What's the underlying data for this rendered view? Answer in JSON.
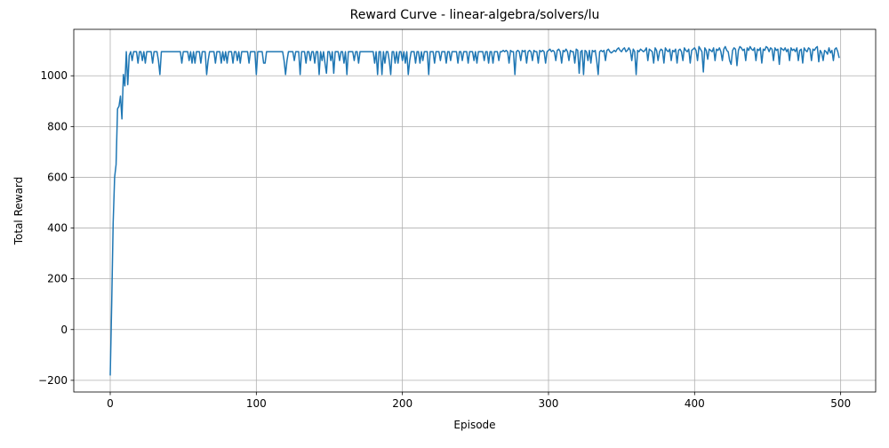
{
  "chart_data": {
    "type": "line",
    "title": "Reward Curve - linear-algebra/solvers/lu",
    "x_label": "Episode",
    "y_label": "Total Reward",
    "color": "#1f77b4",
    "grid": true,
    "xlim": [
      -24.95,
      523.95
    ],
    "ylim": [
      -246,
      1183
    ],
    "xticks": [
      0,
      100,
      200,
      300,
      400,
      500
    ],
    "yticks": [
      {
        "value": -200,
        "label": "−200"
      },
      0,
      200,
      400,
      600,
      800,
      1000
    ],
    "x": [
      0,
      1,
      2,
      3,
      4,
      5,
      6,
      7,
      8,
      9,
      10,
      11,
      12,
      13,
      14,
      15,
      16,
      17,
      18,
      19,
      20,
      21,
      22,
      23,
      24,
      25,
      26,
      27,
      28,
      29,
      30,
      31,
      32,
      33,
      34,
      35,
      36,
      37,
      38,
      39,
      40,
      41,
      42,
      43,
      44,
      45,
      46,
      47,
      48,
      49,
      50,
      51,
      52,
      53,
      54,
      55,
      56,
      57,
      58,
      59,
      60,
      61,
      62,
      63,
      64,
      65,
      66,
      67,
      68,
      69,
      70,
      71,
      72,
      73,
      74,
      75,
      76,
      77,
      78,
      79,
      80,
      81,
      82,
      83,
      84,
      85,
      86,
      87,
      88,
      89,
      90,
      91,
      92,
      93,
      94,
      95,
      96,
      97,
      98,
      99,
      100,
      101,
      102,
      103,
      104,
      105,
      106,
      107,
      108,
      109,
      110,
      111,
      112,
      113,
      114,
      115,
      116,
      117,
      118,
      119,
      120,
      121,
      122,
      123,
      124,
      125,
      126,
      127,
      128,
      129,
      130,
      131,
      132,
      133,
      134,
      135,
      136,
      137,
      138,
      139,
      140,
      141,
      142,
      143,
      144,
      145,
      146,
      147,
      148,
      149,
      150,
      151,
      152,
      153,
      154,
      155,
      156,
      157,
      158,
      159,
      160,
      161,
      162,
      163,
      164,
      165,
      166,
      167,
      168,
      169,
      170,
      171,
      172,
      173,
      174,
      175,
      176,
      177,
      178,
      179,
      180,
      181,
      182,
      183,
      184,
      185,
      186,
      187,
      188,
      189,
      190,
      191,
      192,
      193,
      194,
      195,
      196,
      197,
      198,
      199,
      200,
      201,
      202,
      203,
      204,
      205,
      206,
      207,
      208,
      209,
      210,
      211,
      212,
      213,
      214,
      215,
      216,
      217,
      218,
      219,
      220,
      221,
      222,
      223,
      224,
      225,
      226,
      227,
      228,
      229,
      230,
      231,
      232,
      233,
      234,
      235,
      236,
      237,
      238,
      239,
      240,
      241,
      242,
      243,
      244,
      245,
      246,
      247,
      248,
      249,
      250,
      251,
      252,
      253,
      254,
      255,
      256,
      257,
      258,
      259,
      260,
      261,
      262,
      263,
      264,
      265,
      266,
      267,
      268,
      269,
      270,
      271,
      272,
      273,
      274,
      275,
      276,
      277,
      278,
      279,
      280,
      281,
      282,
      283,
      284,
      285,
      286,
      287,
      288,
      289,
      290,
      291,
      292,
      293,
      294,
      295,
      296,
      297,
      298,
      299,
      300,
      301,
      302,
      303,
      304,
      305,
      306,
      307,
      308,
      309,
      310,
      311,
      312,
      313,
      314,
      315,
      316,
      317,
      318,
      319,
      320,
      321,
      322,
      323,
      324,
      325,
      326,
      327,
      328,
      329,
      330,
      331,
      332,
      333,
      334,
      335,
      336,
      337,
      338,
      339,
      340,
      341,
      342,
      343,
      344,
      345,
      346,
      347,
      348,
      349,
      350,
      351,
      352,
      353,
      354,
      355,
      356,
      357,
      358,
      359,
      360,
      361,
      362,
      363,
      364,
      365,
      366,
      367,
      368,
      369,
      370,
      371,
      372,
      373,
      374,
      375,
      376,
      377,
      378,
      379,
      380,
      381,
      382,
      383,
      384,
      385,
      386,
      387,
      388,
      389,
      390,
      391,
      392,
      393,
      394,
      395,
      396,
      397,
      398,
      399,
      400,
      401,
      402,
      403,
      404,
      405,
      406,
      407,
      408,
      409,
      410,
      411,
      412,
      413,
      414,
      415,
      416,
      417,
      418,
      419,
      420,
      421,
      422,
      423,
      424,
      425,
      426,
      427,
      428,
      429,
      430,
      431,
      432,
      433,
      434,
      435,
      436,
      437,
      438,
      439,
      440,
      441,
      442,
      443,
      444,
      445,
      446,
      447,
      448,
      449,
      450,
      451,
      452,
      453,
      454,
      455,
      456,
      457,
      458,
      459,
      460,
      461,
      462,
      463,
      464,
      465,
      466,
      467,
      468,
      469,
      470,
      471,
      472,
      473,
      474,
      475,
      476,
      477,
      478,
      479,
      480,
      481,
      482,
      483,
      484,
      485,
      486,
      487,
      488,
      489,
      490,
      491,
      492,
      493,
      494,
      495,
      496,
      497,
      498,
      499
    ],
    "values": [
      -181,
      100,
      420,
      600,
      650,
      870,
      880,
      920,
      830,
      1005,
      960,
      1095,
      965,
      1080,
      1095,
      1060,
      1095,
      1095,
      1095,
      1050,
      1095,
      1095,
      1060,
      1095,
      1050,
      1095,
      1095,
      1095,
      1095,
      1050,
      1095,
      1095,
      1095,
      1060,
      1005,
      1095,
      1095,
      1095,
      1095,
      1095,
      1095,
      1095,
      1095,
      1095,
      1095,
      1095,
      1095,
      1095,
      1095,
      1050,
      1095,
      1095,
      1095,
      1095,
      1060,
      1095,
      1050,
      1095,
      1050,
      1095,
      1095,
      1095,
      1050,
      1095,
      1095,
      1095,
      1005,
      1060,
      1095,
      1095,
      1095,
      1095,
      1050,
      1095,
      1095,
      1095,
      1050,
      1095,
      1060,
      1095,
      1050,
      1095,
      1095,
      1095,
      1050,
      1095,
      1095,
      1060,
      1095,
      1050,
      1095,
      1095,
      1095,
      1095,
      1095,
      1050,
      1095,
      1095,
      1095,
      1095,
      1005,
      1095,
      1095,
      1095,
      1095,
      1050,
      1050,
      1095,
      1095,
      1095,
      1095,
      1095,
      1095,
      1095,
      1095,
      1095,
      1095,
      1095,
      1095,
      1060,
      1005,
      1060,
      1095,
      1095,
      1095,
      1095,
      1060,
      1095,
      1095,
      1095,
      1005,
      1095,
      1095,
      1095,
      1050,
      1095,
      1095,
      1060,
      1095,
      1095,
      1050,
      1095,
      1095,
      1005,
      1095,
      1060,
      1095,
      1050,
      1010,
      1095,
      1095,
      1060,
      1095,
      1010,
      1095,
      1095,
      1095,
      1060,
      1095,
      1095,
      1050,
      1095,
      1005,
      1095,
      1095,
      1095,
      1095,
      1060,
      1095,
      1095,
      1050,
      1095,
      1095,
      1095,
      1095,
      1095,
      1095,
      1095,
      1095,
      1095,
      1095,
      1050,
      1095,
      1005,
      1095,
      1095,
      1005,
      1095,
      1050,
      1095,
      1095,
      1060,
      1005,
      1095,
      1095,
      1050,
      1095,
      1050,
      1095,
      1095,
      1060,
      1095,
      1050,
      1095,
      1005,
      1060,
      1095,
      1095,
      1095,
      1050,
      1095,
      1095,
      1050,
      1095,
      1060,
      1095,
      1095,
      1095,
      1005,
      1095,
      1095,
      1095,
      1050,
      1095,
      1095,
      1095,
      1060,
      1095,
      1095,
      1095,
      1050,
      1095,
      1095,
      1060,
      1095,
      1095,
      1095,
      1095,
      1050,
      1095,
      1095,
      1060,
      1095,
      1095,
      1095,
      1050,
      1095,
      1095,
      1095,
      1060,
      1095,
      1050,
      1095,
      1095,
      1095,
      1095,
      1060,
      1095,
      1095,
      1050,
      1095,
      1095,
      1050,
      1095,
      1095,
      1095,
      1060,
      1095,
      1095,
      1100,
      1095,
      1100,
      1095,
      1050,
      1100,
      1095,
      1095,
      1005,
      1095,
      1100,
      1095,
      1060,
      1100,
      1095,
      1100,
      1050,
      1095,
      1100,
      1095,
      1060,
      1100,
      1095,
      1095,
      1050,
      1100,
      1095,
      1100,
      1095,
      1050,
      1095,
      1100,
      1105,
      1095,
      1100,
      1095,
      1060,
      1100,
      1105,
      1095,
      1050,
      1100,
      1095,
      1105,
      1095,
      1060,
      1100,
      1095,
      1095,
      1050,
      1105,
      1100,
      1010,
      1095,
      1100,
      1005,
      1100,
      1095,
      1060,
      1100,
      1050,
      1100,
      1095,
      1100,
      1060,
      1005,
      1095,
      1100,
      1095,
      1100,
      1060,
      1100,
      1105,
      1095,
      1090,
      1095,
      1100,
      1095,
      1105,
      1110,
      1100,
      1095,
      1105,
      1110,
      1095,
      1100,
      1110,
      1100,
      1060,
      1105,
      1095,
      1005,
      1100,
      1095,
      1105,
      1100,
      1095,
      1100,
      1110,
      1060,
      1105,
      1100,
      1095,
      1050,
      1110,
      1100,
      1060,
      1095,
      1105,
      1100,
      1050,
      1110,
      1100,
      1095,
      1105,
      1060,
      1100,
      1095,
      1105,
      1050,
      1100,
      1105,
      1095,
      1060,
      1110,
      1100,
      1095,
      1105,
      1050,
      1100,
      1105,
      1110,
      1100,
      1060,
      1115,
      1105,
      1095,
      1015,
      1110,
      1100,
      1065,
      1105,
      1100,
      1095,
      1110,
      1060,
      1105,
      1100,
      1110,
      1095,
      1060,
      1105,
      1115,
      1100,
      1095,
      1060,
      1045,
      1100,
      1110,
      1105,
      1040,
      1100,
      1115,
      1110,
      1100,
      1105,
      1060,
      1110,
      1100,
      1115,
      1105,
      1100,
      1110,
      1060,
      1105,
      1100,
      1110,
      1050,
      1105,
      1100,
      1115,
      1110,
      1095,
      1110,
      1105,
      1060,
      1110,
      1100,
      1105,
      1045,
      1110,
      1105,
      1100,
      1110,
      1095,
      1105,
      1060,
      1110,
      1100,
      1105,
      1095,
      1110,
      1060,
      1100,
      1105,
      1050,
      1110,
      1100,
      1095,
      1110,
      1105,
      1060,
      1105,
      1100,
      1110,
      1115,
      1055,
      1100,
      1090,
      1060,
      1100,
      1095,
      1085,
      1110,
      1090,
      1100,
      1060,
      1105,
      1110,
      1095,
      1070
    ]
  }
}
